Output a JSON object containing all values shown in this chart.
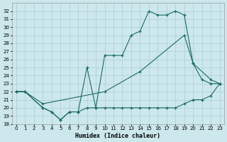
{
  "xlabel": "Humidex (Indice chaleur)",
  "bg_color": "#cce8ed",
  "line_color": "#1e6b5e",
  "grid_color": "#aaccd4",
  "xlim": [
    -0.5,
    23.5
  ],
  "ylim": [
    18,
    33
  ],
  "yticks": [
    18,
    19,
    20,
    21,
    22,
    23,
    24,
    25,
    26,
    27,
    28,
    29,
    30,
    31,
    32
  ],
  "xticks": [
    0,
    1,
    2,
    3,
    4,
    5,
    6,
    7,
    8,
    9,
    10,
    11,
    12,
    13,
    14,
    15,
    16,
    17,
    18,
    19,
    20,
    21,
    22,
    23
  ],
  "line1_x": [
    0,
    1,
    3,
    4,
    5,
    6,
    7,
    8,
    9,
    10,
    11,
    12,
    13,
    14,
    15,
    16,
    17,
    18,
    19,
    20,
    21,
    22,
    23
  ],
  "line1_y": [
    22,
    22,
    20,
    19.5,
    18.5,
    19.5,
    19.5,
    20,
    20,
    20,
    20,
    20,
    20,
    20,
    20,
    20,
    20,
    20,
    20.5,
    21,
    21,
    21.5,
    23
  ],
  "line2_x": [
    0,
    1,
    3,
    4,
    5,
    6,
    7,
    8,
    9,
    10,
    11,
    12,
    13,
    14,
    15,
    16,
    17,
    18,
    19,
    20,
    21,
    22,
    23
  ],
  "line2_y": [
    22,
    22,
    20,
    19.5,
    18.5,
    19.5,
    19.5,
    25,
    20,
    26.5,
    26.5,
    26.5,
    29,
    29.5,
    32,
    31.5,
    31.5,
    32,
    31.5,
    25.5,
    23.5,
    23,
    23
  ],
  "line3_x": [
    0,
    1,
    3,
    10,
    14,
    19,
    20,
    22,
    23
  ],
  "line3_y": [
    22,
    22,
    20.5,
    22,
    24.5,
    29,
    25.5,
    23.5,
    23
  ]
}
